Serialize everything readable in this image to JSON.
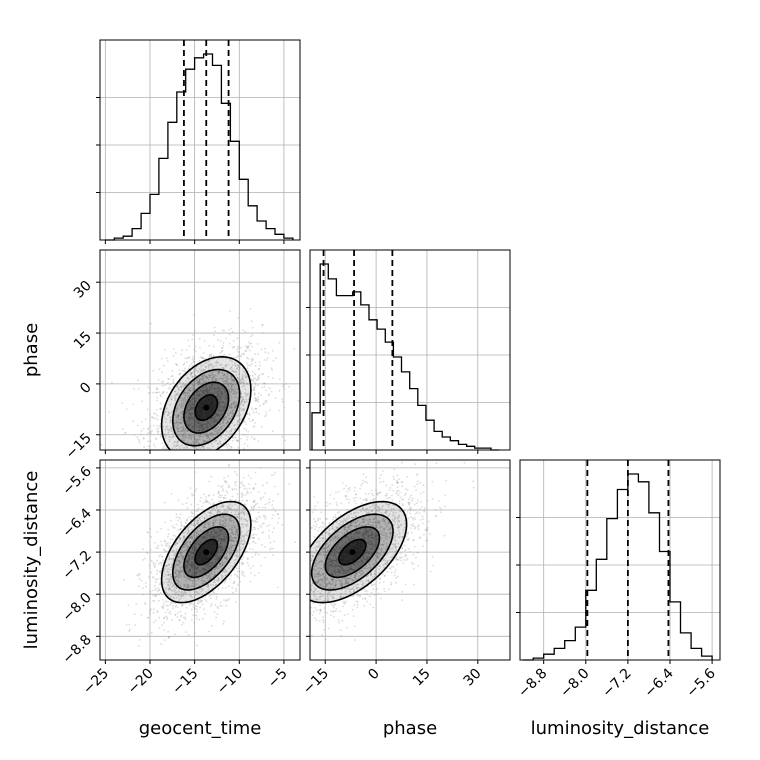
{
  "chart_data": {
    "type": "corner",
    "parameters": [
      "geocent_time",
      "phase",
      "luminosity_distance"
    ],
    "axes": {
      "geocent_time": {
        "label": "geocent_time",
        "range": [
          -25.6,
          -3.2
        ],
        "ticks": [
          -25,
          -20,
          -15,
          -10,
          -5
        ],
        "tick_labels": [
          "−25",
          "−20",
          "−15",
          "−10",
          "−5"
        ]
      },
      "phase": {
        "label": "phase",
        "range": [
          -19.5,
          39.5
        ],
        "ticks": [
          -15,
          0,
          15,
          30
        ],
        "tick_labels": [
          "−15",
          "0",
          "15",
          "30"
        ]
      },
      "luminosity_distance": {
        "label": "luminosity_distance",
        "range": [
          -9.25,
          -5.45
        ],
        "ticks": [
          -8.8,
          -8.0,
          -7.2,
          -6.4,
          -5.6
        ],
        "tick_labels": [
          "−8.8",
          "−8.0",
          "−7.2",
          "−6.4",
          "−5.6"
        ]
      }
    },
    "histograms": {
      "geocent_time": {
        "bin_edges": [
          -25.0,
          -24.0,
          -23.0,
          -22.0,
          -21.0,
          -20.0,
          -19.0,
          -18.0,
          -17.0,
          -16.0,
          -15.0,
          -14.0,
          -13.0,
          -12.0,
          -11.0,
          -10.0,
          -9.0,
          -8.0,
          -7.0,
          -6.0,
          -5.0,
          -4.0
        ],
        "counts": [
          0,
          1,
          2,
          6,
          14,
          24,
          43,
          62,
          78,
          90,
          96,
          98,
          92,
          72,
          52,
          32,
          18,
          10,
          6,
          3,
          1
        ],
        "quantiles": [
          -16.2,
          -13.7,
          -11.2
        ]
      },
      "phase": {
        "bin_edges": [
          -18.9,
          -16.5,
          -14.1,
          -11.7,
          -9.3,
          -6.9,
          -4.5,
          -2.1,
          0.3,
          2.7,
          5.1,
          7.5,
          9.9,
          12.3,
          14.7,
          17.1,
          19.5,
          21.9,
          24.3,
          26.7,
          29.1,
          31.5,
          33.9,
          36.3
        ],
        "counts": [
          20,
          100,
          92,
          83,
          83,
          85,
          78,
          70,
          65,
          58,
          50,
          42,
          33,
          24,
          16,
          10,
          7,
          5,
          3,
          2,
          1,
          1,
          0
        ],
        "quantiles": [
          -15.5,
          -6.5,
          4.8
        ]
      },
      "luminosity_distance": {
        "bin_edges": [
          -9.2,
          -9.0,
          -8.8,
          -8.6,
          -8.4,
          -8.2,
          -8.0,
          -7.8,
          -7.6,
          -7.4,
          -7.2,
          -7.0,
          -6.8,
          -6.6,
          -6.4,
          -6.2,
          -6.0,
          -5.8,
          -5.6
        ],
        "counts": [
          0,
          1,
          3,
          6,
          10,
          17,
          36,
          52,
          73,
          88,
          96,
          92,
          76,
          56,
          30,
          14,
          6,
          2
        ],
        "quantiles": [
          -7.97,
          -7.2,
          -6.43
        ]
      }
    },
    "contours": {
      "phase_vs_geocent_time": {
        "mean": [
          -13.7,
          -7.0
        ],
        "sd": [
          2.5,
          7.5
        ],
        "corr": 0.35,
        "levels": [
          0.5,
          1.0,
          1.5,
          2.0
        ]
      },
      "luminosity_distance_vs_geocent_time": {
        "mean": [
          -13.7,
          -7.2
        ],
        "sd": [
          2.5,
          0.48
        ],
        "corr": 0.55,
        "levels": [
          0.5,
          1.0,
          1.5,
          2.0
        ]
      },
      "luminosity_distance_vs_phase": {
        "mean": [
          -7.0,
          -7.2
        ],
        "sd": [
          8.0,
          0.48
        ],
        "corr": 0.55,
        "levels": [
          0.5,
          1.0,
          1.5,
          2.0
        ]
      }
    },
    "grid": true,
    "colors": {
      "line": "#000000",
      "grid": "#b0b0b0",
      "scatter": "#9a9a9a",
      "density": "#000000"
    }
  }
}
